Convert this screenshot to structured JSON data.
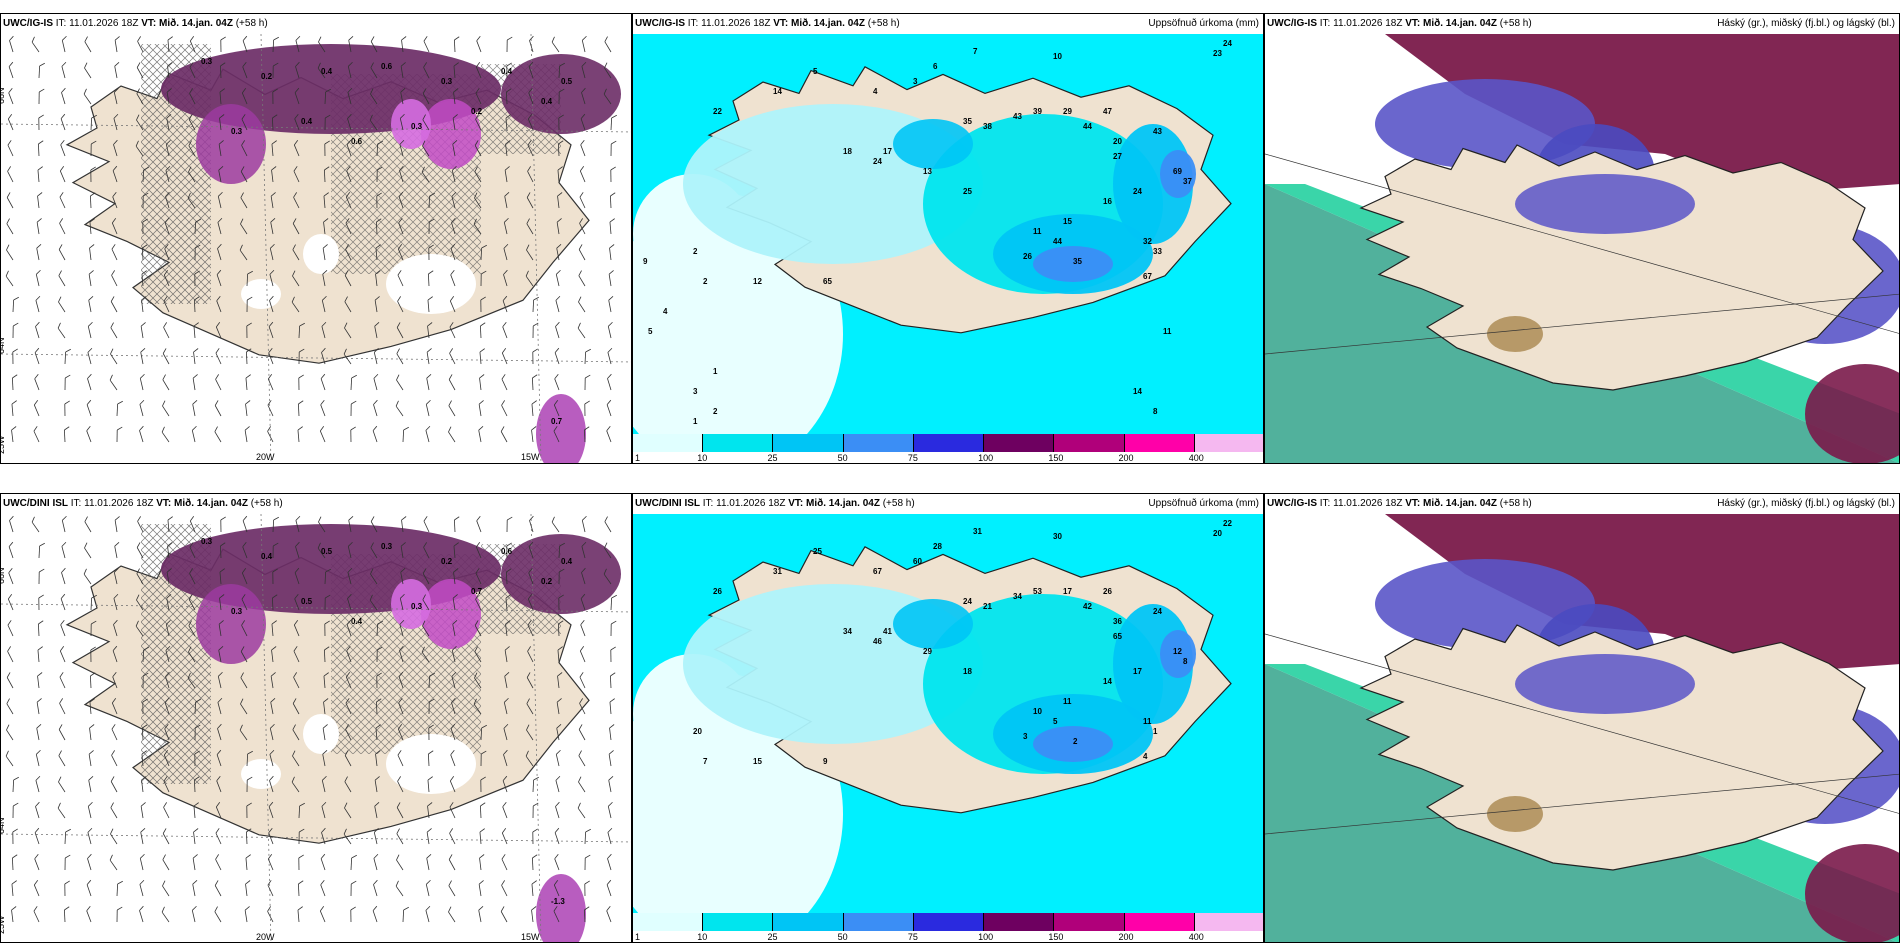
{
  "panels": [
    {
      "id": "p1",
      "model": "UWC/IG-IS",
      "it_label": "IT:",
      "it": "11.01.2026 18Z",
      "vt_label": "VT:",
      "vt": "Mið. 14.jan. 04Z",
      "lead": "(+58 h)",
      "right_title": "",
      "type": "wind",
      "axis": {
        "lat_top": "66N",
        "lat_mid": "64N",
        "lon_left": "25W",
        "lon_a": "20W",
        "lon_b": "15W"
      },
      "values": [
        "0.3",
        "0.2",
        "0.4",
        "0.6",
        "0.3",
        "0.4",
        "0.5",
        "0.3",
        "0.4",
        "0.6",
        "0.3",
        "0.2",
        "0.4",
        "0.7"
      ]
    },
    {
      "id": "p2",
      "model": "UWC/IG-IS",
      "it_label": "IT:",
      "it": "11.01.2026 18Z",
      "vt_label": "VT:",
      "vt": "Mið. 14.jan. 04Z",
      "lead": "(+58 h)",
      "right_title": "Uppsöfnuð úrkoma (mm)",
      "type": "precip",
      "values": [
        "24",
        "23",
        "10",
        "7",
        "6",
        "3",
        "4",
        "5",
        "14",
        "22",
        "35",
        "38",
        "43",
        "39",
        "29",
        "44",
        "47",
        "20",
        "27",
        "43",
        "18",
        "24",
        "17",
        "13",
        "25",
        "69",
        "37",
        "24",
        "16",
        "15",
        "11",
        "44",
        "26",
        "35",
        "33",
        "32",
        "67",
        "65",
        "12",
        "2",
        "2",
        "9",
        "4",
        "5",
        "1",
        "3",
        "2",
        "1",
        "11",
        "14",
        "8"
      ],
      "colorbar": {
        "ticks": [
          "1",
          "10",
          "25",
          "50",
          "75",
          "100",
          "150",
          "200",
          "400"
        ],
        "colors": [
          "#e0ffff",
          "#00e5ee",
          "#00c5f5",
          "#3b8ef5",
          "#2a2adf",
          "#6e0060",
          "#b0007a",
          "#ff00a8",
          "#f5b8f0"
        ]
      }
    },
    {
      "id": "p3",
      "model": "UWC/IG-IS",
      "it_label": "IT:",
      "it": "11.01.2026 18Z",
      "vt_label": "VT:",
      "vt": "Mið. 14.jan. 04Z",
      "lead": "(+58 h)",
      "right_title": "Háský (gr.), miðský (fj.bl.) og lágský (bl.)",
      "type": "cloud"
    },
    {
      "id": "p4",
      "model": "UWC/DINI ISL",
      "it_label": "IT:",
      "it": "11.01.2026 18Z",
      "vt_label": "VT:",
      "vt": "Mið. 14.jan. 04Z",
      "lead": "(+58 h)",
      "right_title": "",
      "type": "wind",
      "axis": {
        "lat_top": "66N",
        "lat_mid": "64N",
        "lon_left": "25W",
        "lon_a": "20W",
        "lon_b": "15W"
      },
      "values": [
        "0.3",
        "0.4",
        "0.5",
        "0.3",
        "0.2",
        "0.6",
        "0.4",
        "0.3",
        "0.5",
        "0.4",
        "0.3",
        "0.7",
        "0.2",
        "-1.3"
      ]
    },
    {
      "id": "p5",
      "model": "UWC/DINI ISL",
      "it_label": "IT:",
      "it": "11.01.2026 18Z",
      "vt_label": "VT:",
      "vt": "Mið. 14.jan. 04Z",
      "lead": "(+58 h)",
      "right_title": "Uppsöfnuð úrkoma (mm)",
      "type": "precip",
      "values": [
        "22",
        "20",
        "30",
        "31",
        "28",
        "60",
        "67",
        "25",
        "31",
        "26",
        "24",
        "21",
        "34",
        "53",
        "17",
        "42",
        "26",
        "36",
        "65",
        "24",
        "34",
        "46",
        "41",
        "29",
        "18",
        "12",
        "8",
        "17",
        "14",
        "11",
        "10",
        "5",
        "3",
        "2",
        "1",
        "11",
        "4",
        "9",
        "15",
        "20",
        "7"
      ],
      "colorbar": {
        "ticks": [
          "1",
          "10",
          "25",
          "50",
          "75",
          "100",
          "150",
          "200",
          "400"
        ],
        "colors": [
          "#e0ffff",
          "#00e5ee",
          "#00c5f5",
          "#3b8ef5",
          "#2a2adf",
          "#6e0060",
          "#b0007a",
          "#ff00a8",
          "#f5b8f0"
        ]
      }
    },
    {
      "id": "p6",
      "model": "UWC/IG-IS",
      "it_label": "IT:",
      "it": "11.01.2026 18Z",
      "vt_label": "VT:",
      "vt": "Mið. 14.jan. 04Z",
      "lead": "(+58 h)",
      "right_title": "Háský (gr.), miðský (fj.bl.) og lágský (bl.)",
      "type": "cloud"
    }
  ]
}
